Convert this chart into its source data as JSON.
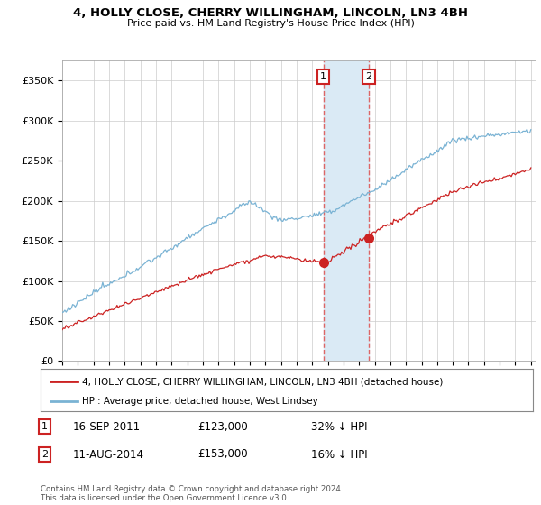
{
  "title": "4, HOLLY CLOSE, CHERRY WILLINGHAM, LINCOLN, LN3 4BH",
  "subtitle": "Price paid vs. HM Land Registry's House Price Index (HPI)",
  "ylim": [
    0,
    375000
  ],
  "yticks": [
    0,
    50000,
    100000,
    150000,
    200000,
    250000,
    300000,
    350000
  ],
  "ytick_labels": [
    "£0",
    "£50K",
    "£100K",
    "£150K",
    "£200K",
    "£250K",
    "£300K",
    "£350K"
  ],
  "hpi_color": "#7ab3d4",
  "price_color": "#cc2222",
  "vline_color": "#dd6666",
  "shade_color": "#daeaf5",
  "annotation1_price": 123000,
  "annotation1_text": "16-SEP-2011",
  "annotation1_pct": "32% ↓ HPI",
  "annotation2_price": 153000,
  "annotation2_text": "11-AUG-2014",
  "annotation2_pct": "16% ↓ HPI",
  "legend_line1": "4, HOLLY CLOSE, CHERRY WILLINGHAM, LINCOLN, LN3 4BH (detached house)",
  "legend_line2": "HPI: Average price, detached house, West Lindsey",
  "footnote": "Contains HM Land Registry data © Crown copyright and database right 2024.\nThis data is licensed under the Open Government Licence v3.0.",
  "bg_color": "#ffffff",
  "grid_color": "#cccccc",
  "sale1_t": 2011.71,
  "sale2_t": 2014.61
}
